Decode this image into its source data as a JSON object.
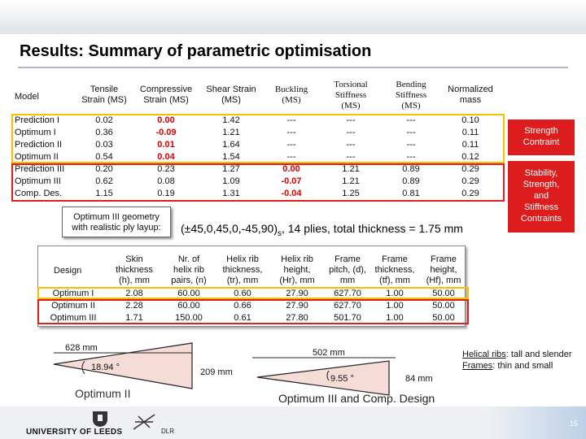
{
  "slide": {
    "title": "Results: Summary of parametric optimisation",
    "page_number": "15",
    "accent": "#d40000"
  },
  "results_table": {
    "headers": {
      "model": "Model",
      "tensile_1": "Tensile",
      "tensile_2": "Strain (MS)",
      "compressive_1": "Compressive",
      "compressive_2": "Strain (MS)",
      "shear_1": "Shear Strain",
      "shear_2": "(MS)",
      "buckling_1": "Buckling",
      "buckling_2": "(MS)",
      "torsional_1": "Torsional",
      "torsional_2": "Stiffness",
      "torsional_3": "(MS)",
      "bending_1": "Bending",
      "bending_2": "Stiffness",
      "bending_3": "(MS)",
      "mass_1": "Normalized",
      "mass_2": "mass"
    },
    "rows": [
      {
        "model": "Prediction I",
        "tensile": "0.02",
        "compressive": "0.00",
        "shear": "1.42",
        "buckling": "---",
        "torsional": "---",
        "bending": "---",
        "mass": "0.10"
      },
      {
        "model": "Optimum I",
        "tensile": "0.36",
        "compressive": "-0.09",
        "shear": "1.21",
        "buckling": "---",
        "torsional": "---",
        "bending": "---",
        "mass": "0.11"
      },
      {
        "model": "Prediction II",
        "tensile": "0.03",
        "compressive": "0.01",
        "shear": "1.64",
        "buckling": "---",
        "torsional": "---",
        "bending": "---",
        "mass": "0.11"
      },
      {
        "model": "Optimum II",
        "tensile": "0.54",
        "compressive": "0.04",
        "shear": "1.54",
        "buckling": "---",
        "torsional": "---",
        "bending": "---",
        "mass": "0.12"
      },
      {
        "model": "Prediction III",
        "tensile": "0.20",
        "compressive": "0.23",
        "shear": "1.27",
        "buckling": "0.00",
        "torsional": "1.21",
        "bending": "0.89",
        "mass": "0.29"
      },
      {
        "model": "Optimum III",
        "tensile": "0.62",
        "compressive": "0.08",
        "shear": "1.09",
        "buckling": "-0.07",
        "torsional": "1.21",
        "bending": "0.89",
        "mass": "0.29"
      },
      {
        "model": "Comp. Des.",
        "tensile": "1.15",
        "compressive": "0.19",
        "shear": "1.31",
        "buckling": "-0.04",
        "torsional": "1.25",
        "bending": "0.81",
        "mass": "0.29"
      }
    ]
  },
  "notes": {
    "strength_1": "Strength",
    "strength_2": "Contraint",
    "stability_1": "Stability,",
    "stability_2": "Strength,",
    "stability_3": "and",
    "stability_4": "Stiffness",
    "stability_5": "Contraints"
  },
  "layup": {
    "label_1": "Optimum III geometry",
    "label_2": "with realistic ply layup:",
    "text_main": "(±45,0,45,0,-45,90)",
    "text_sub": "s",
    "text_rest": ", 14 plies, total thickness = 1.75 mm"
  },
  "design_table": {
    "headers": {
      "design": "Design",
      "skin_1": "Skin",
      "skin_2": "thickness",
      "skin_3": "(h), mm",
      "nr_1": "Nr. of",
      "nr_2": "helix rib",
      "nr_3": "pairs, (n)",
      "hrt_1": "Helix rib",
      "hrt_2": "thickness,",
      "hrt_3": "(tr), mm",
      "hrh_1": "Helix rib",
      "hrh_2": "height,",
      "hrh_3": "(Hr), mm",
      "fp_1": "Frame",
      "fp_2": "pitch, (d),",
      "fp_3": "mm",
      "ft_1": "Frame",
      "ft_2": "thickness,",
      "ft_3": "(tf), mm",
      "fh_1": "Frame",
      "fh_2": "height,",
      "fh_3": "(Hf), mm"
    },
    "rows": [
      {
        "design": "Optimum I",
        "skin": "2.08",
        "nr": "60.00",
        "hrt": "0.60",
        "hrh": "27.90",
        "fp": "627.70",
        "ft": "1.00",
        "fh": "50.00"
      },
      {
        "design": "Optimum II",
        "skin": "2.28",
        "nr": "60.00",
        "hrt": "0.66",
        "hrh": "27.90",
        "fp": "627.70",
        "ft": "1.00",
        "fh": "50.00"
      },
      {
        "design": "Optimum III",
        "skin": "1.71",
        "nr": "150.00",
        "hrt": "0.61",
        "hrh": "27.80",
        "fp": "501.70",
        "ft": "1.00",
        "fh": "50.00"
      }
    ]
  },
  "sketches": {
    "left_length": "628 mm",
    "left_angle": "18.94 °",
    "left_height": "209 mm",
    "left_caption": "Optimum II",
    "right_length": "502 mm",
    "right_angle": "9.55 °",
    "right_height": "84 mm",
    "right_caption": "Optimum III and Comp. Design"
  },
  "remarks": {
    "helical_label": "Helical ribs",
    "helical_text": ": tall and slender",
    "frames_label": "Frames",
    "frames_text": ": thin and small"
  },
  "footer": {
    "leeds_logo": "UNIVERSITY OF LEEDS",
    "dlr_logo": "DLR"
  }
}
